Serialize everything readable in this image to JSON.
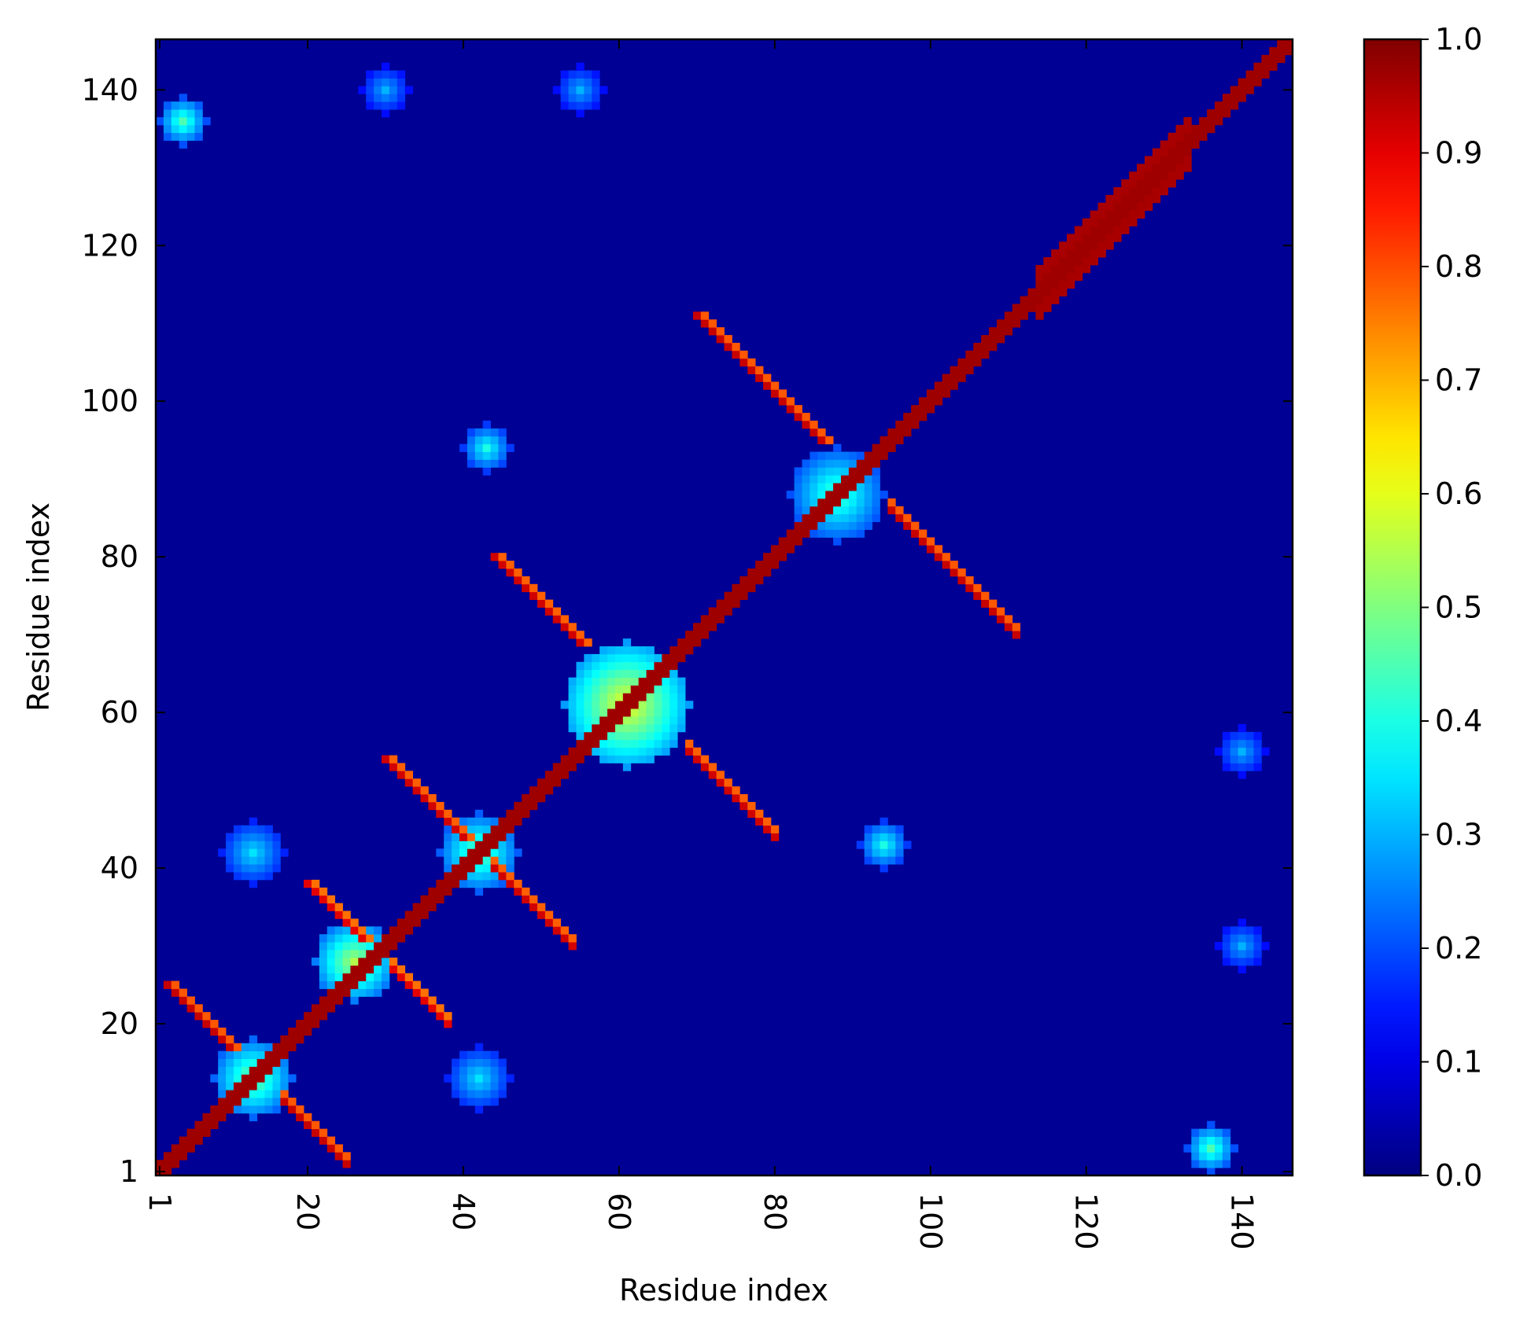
{
  "chart_data": {
    "type": "heatmap",
    "title": "",
    "xlabel": "Residue index",
    "ylabel": "Residue index",
    "n_residues": 146,
    "x_range": [
      1,
      146
    ],
    "y_range": [
      1,
      146
    ],
    "x_ticks": [
      {
        "value": 1,
        "label": "1"
      },
      {
        "value": 20,
        "label": "20"
      },
      {
        "value": 40,
        "label": "40"
      },
      {
        "value": 60,
        "label": "60"
      },
      {
        "value": 80,
        "label": "80"
      },
      {
        "value": 100,
        "label": "100"
      },
      {
        "value": 120,
        "label": "120"
      },
      {
        "value": 140,
        "label": "140"
      }
    ],
    "y_ticks": [
      {
        "value": 1,
        "label": "1"
      },
      {
        "value": 20,
        "label": "20"
      },
      {
        "value": 40,
        "label": "40"
      },
      {
        "value": 60,
        "label": "60"
      },
      {
        "value": 80,
        "label": "80"
      },
      {
        "value": 100,
        "label": "100"
      },
      {
        "value": 120,
        "label": "120"
      },
      {
        "value": 140,
        "label": "140"
      }
    ],
    "x_tick_rotation": "vertical",
    "colormap": "jet",
    "color_range": [
      0.0,
      1.0
    ],
    "colorbar_ticks": [
      {
        "value": 0.0,
        "label": "0.0"
      },
      {
        "value": 0.1,
        "label": "0.1"
      },
      {
        "value": 0.2,
        "label": "0.2"
      },
      {
        "value": 0.3,
        "label": "0.3"
      },
      {
        "value": 0.4,
        "label": "0.4"
      },
      {
        "value": 0.5,
        "label": "0.5"
      },
      {
        "value": 0.6,
        "label": "0.6"
      },
      {
        "value": 0.7,
        "label": "0.7"
      },
      {
        "value": 0.8,
        "label": "0.8"
      },
      {
        "value": 0.9,
        "label": "0.9"
      },
      {
        "value": 1.0,
        "label": "1.0"
      }
    ],
    "background_value": 0.02,
    "features": [
      {
        "kind": "diagonal_band",
        "from": 1,
        "to": 146,
        "halfwidth": 1,
        "value": 0.97
      },
      {
        "kind": "diagonal_band",
        "from": 114,
        "to": 133,
        "halfwidth": 3,
        "value": 0.96
      },
      {
        "kind": "antiparallel",
        "i_start": 2,
        "j_start": 25,
        "length": 9,
        "value": 0.93
      },
      {
        "kind": "antiparallel",
        "i_start": 20,
        "j_start": 38,
        "length": 8,
        "value": 0.9
      },
      {
        "kind": "antiparallel",
        "i_start": 30,
        "j_start": 54,
        "length": 11,
        "value": 0.92
      },
      {
        "kind": "antiparallel",
        "i_start": 44,
        "j_start": 80,
        "length": 12,
        "value": 0.92
      },
      {
        "kind": "antiparallel",
        "i_start": 70,
        "j_start": 111,
        "length": 17,
        "value": 0.93
      },
      {
        "kind": "blob",
        "x": 13,
        "y": 13,
        "r": 5,
        "value": 0.5
      },
      {
        "kind": "blob",
        "x": 26,
        "y": 28,
        "r": 5,
        "value": 0.55
      },
      {
        "kind": "blob",
        "x": 42,
        "y": 42,
        "r": 5,
        "value": 0.48
      },
      {
        "kind": "blob",
        "x": 61,
        "y": 61,
        "r": 8,
        "value": 0.62
      },
      {
        "kind": "blob",
        "x": 88,
        "y": 88,
        "r": 6,
        "value": 0.45
      },
      {
        "kind": "blob",
        "x": 43,
        "y": 94,
        "r": 3,
        "value": 0.4
      },
      {
        "kind": "blob",
        "x": 94,
        "y": 43,
        "r": 3,
        "value": 0.4
      },
      {
        "kind": "blob",
        "x": 13,
        "y": 42,
        "r": 4,
        "value": 0.35
      },
      {
        "kind": "blob",
        "x": 42,
        "y": 13,
        "r": 4,
        "value": 0.35
      },
      {
        "kind": "blob",
        "x": 4,
        "y": 136,
        "r": 3,
        "value": 0.45
      },
      {
        "kind": "blob",
        "x": 136,
        "y": 4,
        "r": 3,
        "value": 0.45
      },
      {
        "kind": "blob",
        "x": 140,
        "y": 55,
        "r": 3,
        "value": 0.3
      },
      {
        "kind": "blob",
        "x": 55,
        "y": 140,
        "r": 3,
        "value": 0.3
      },
      {
        "kind": "blob",
        "x": 140,
        "y": 30,
        "r": 3,
        "value": 0.3
      },
      {
        "kind": "blob",
        "x": 30,
        "y": 140,
        "r": 3,
        "value": 0.3
      }
    ]
  }
}
